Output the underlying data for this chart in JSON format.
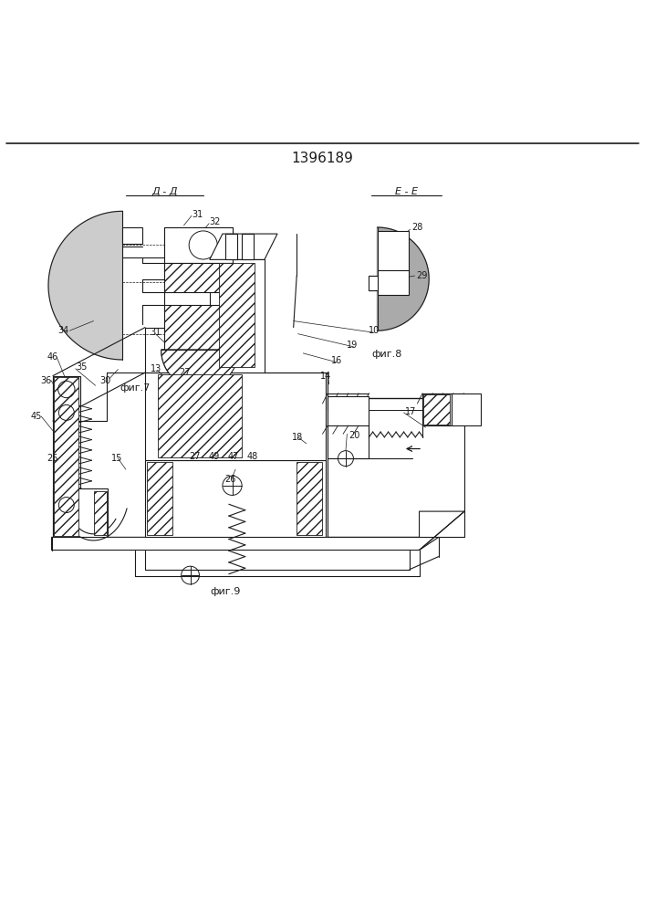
{
  "title": "1396189",
  "title_fontsize": 11,
  "bg_color": "#ffffff",
  "line_color": "#1a1a1a",
  "fig7_label": "фиг.7",
  "fig8_label": "фиг.8",
  "fig9_label": "фиг.9",
  "section_dd": "Д - Д",
  "section_ee": "Е - Е"
}
